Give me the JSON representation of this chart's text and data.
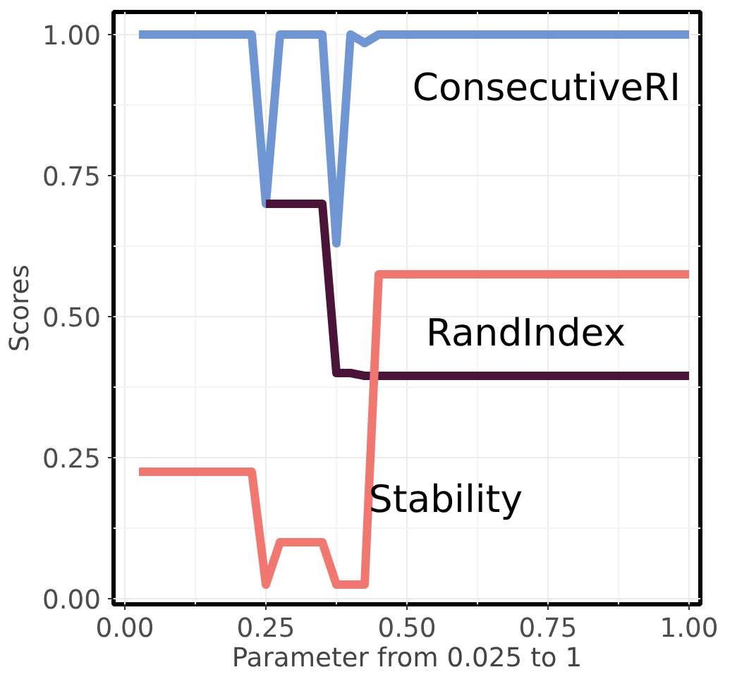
{
  "chart_data": {
    "type": "line",
    "xlabel": "Parameter from 0.025 to 1",
    "ylabel": "Scores",
    "xlim": [
      -0.02,
      1.02
    ],
    "ylim": [
      -0.01,
      1.04
    ],
    "xticks": [
      {
        "value": 0,
        "label": "0.00"
      },
      0.25,
      {
        "value": 0.5,
        "label": "0.50"
      },
      0.75,
      {
        "value": 1,
        "label": "1.00"
      }
    ],
    "yticks": [
      {
        "value": 0,
        "label": "0.00"
      },
      0.25,
      {
        "value": 0.5,
        "label": "0.50"
      },
      0.75,
      {
        "value": 1,
        "label": "1.00"
      }
    ],
    "grid": true,
    "legend": false,
    "line_style": "solid",
    "marker": "none",
    "series": [
      {
        "name": "ConsecutiveRI",
        "color": "#6f96d3",
        "x": [
          0.025,
          0.225,
          0.25,
          0.275,
          0.35,
          0.375,
          0.4,
          0.425,
          0.45,
          1.0
        ],
        "values": [
          1,
          1,
          0.7,
          1,
          1,
          0.63,
          1,
          0.985,
          1,
          1
        ]
      },
      {
        "name": "RandIndex",
        "color": "#4a1438",
        "x": [
          0.25,
          0.275,
          0.35,
          0.375,
          0.4,
          0.425,
          0.45,
          1.0
        ],
        "values": [
          0.7,
          0.7,
          0.7,
          0.4,
          0.4,
          0.395,
          0.395,
          0.395
        ]
      },
      {
        "name": "Stability",
        "color": "#f07870",
        "x": [
          0.025,
          0.225,
          0.25,
          0.275,
          0.35,
          0.375,
          0.425,
          0.45,
          1.0
        ],
        "values": [
          0.225,
          0.225,
          0.025,
          0.1,
          0.1,
          0.025,
          0.025,
          0.575,
          0.575
        ]
      }
    ]
  }
}
